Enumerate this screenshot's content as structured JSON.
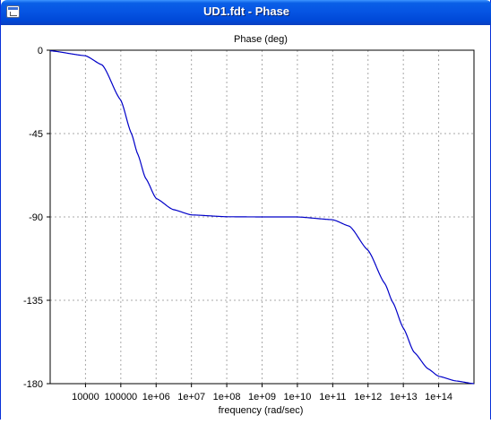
{
  "window": {
    "title": "UD1.fdt - Phase",
    "icon": "window-app-icon"
  },
  "chart_data": {
    "type": "line",
    "title": "Phase (deg)",
    "xlabel": "frequency (rad/sec)",
    "ylabel": "",
    "x_scale": "log",
    "xlim": [
      1000,
      1000000000000000
    ],
    "ylim": [
      -180,
      0
    ],
    "x_ticks": [
      10000,
      100000,
      1000000,
      10000000,
      100000000,
      1000000000,
      10000000000,
      100000000000,
      1000000000000,
      10000000000000,
      100000000000000
    ],
    "x_tick_labels": [
      "10000",
      "100000",
      "1e+06",
      "1e+07",
      "1e+08",
      "1e+09",
      "1e+10",
      "1e+11",
      "1e+12",
      "1e+13",
      "1e+14"
    ],
    "y_ticks": [
      0,
      -45,
      -90,
      -135,
      -180
    ],
    "y_tick_labels": [
      "0",
      "-45",
      "-90",
      "-135",
      "-180"
    ],
    "grid": true,
    "series": [
      {
        "color": "#0000c8",
        "x": [
          1000,
          10000,
          30000,
          100000,
          200000,
          300000,
          500000,
          1000000,
          3000000,
          10000000,
          100000000,
          1000000000,
          10000000000,
          100000000000,
          300000000000,
          1000000000000,
          3000000000000,
          5000000000000,
          10000000000000,
          20000000000000,
          50000000000000,
          100000000000000,
          300000000000000,
          1000000000000000
        ],
        "y": [
          -0.3,
          -3,
          -8,
          -27,
          -45,
          -56,
          -69,
          -80,
          -86,
          -88.9,
          -89.9,
          -90,
          -90,
          -91.5,
          -95,
          -108,
          -126,
          -136,
          -150,
          -163,
          -172,
          -176,
          -178.5,
          -180
        ]
      }
    ],
    "colors": {
      "line": "#0000c8",
      "grid": "#a8a8a8",
      "axes": "#000000"
    }
  }
}
